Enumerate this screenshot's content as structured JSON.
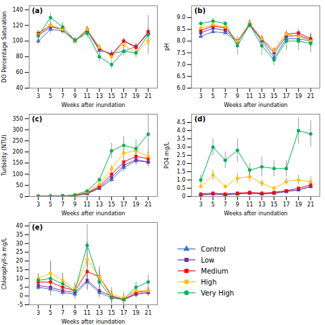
{
  "chart_data": [
    {
      "type": "line",
      "title": "(a)",
      "xlabel": "Weeks after inundation",
      "ylabel": "DO Percentage Saturation",
      "x": [
        3,
        5,
        7,
        9,
        11,
        13,
        15,
        17,
        19,
        21
      ],
      "xlim": [
        1.5,
        22.5
      ],
      "xticks": [
        3,
        5,
        7,
        9,
        11,
        13,
        15,
        17,
        19,
        21
      ],
      "ylim": [
        40,
        145
      ],
      "yticks": [
        40,
        60,
        80,
        100,
        120,
        140
      ],
      "series": [
        {
          "name": "Control",
          "color": "#4472C4",
          "marker": "triangle",
          "values": [
            100,
            115,
            113,
            100,
            113,
            88,
            84,
            87,
            93,
            110
          ],
          "errors": [
            4,
            5,
            4,
            3,
            4,
            5,
            4,
            4,
            4,
            5
          ]
        },
        {
          "name": "Low",
          "color": "#7030A0",
          "marker": "square",
          "values": [
            107,
            118,
            115,
            101,
            114,
            90,
            83,
            100,
            93,
            110
          ],
          "errors": [
            4,
            4,
            4,
            3,
            4,
            4,
            4,
            4,
            4,
            5
          ]
        },
        {
          "name": "Medium",
          "color": "#FF0000",
          "marker": "square",
          "values": [
            110,
            120,
            115,
            100,
            115,
            91,
            82,
            100,
            92,
            112
          ],
          "errors": [
            4,
            4,
            4,
            3,
            4,
            4,
            4,
            4,
            4,
            5
          ]
        },
        {
          "name": "High",
          "color": "#FFC000",
          "marker": "circle",
          "values": [
            108,
            120,
            115,
            100,
            115,
            92,
            80,
            95,
            85,
            100
          ],
          "errors": [
            4,
            4,
            4,
            3,
            4,
            4,
            4,
            4,
            4,
            5
          ]
        },
        {
          "name": "Very High",
          "color": "#00B050",
          "marker": "circle",
          "values": [
            107,
            130,
            118,
            101,
            110,
            80,
            70,
            87,
            85,
            108
          ],
          "errors": [
            4,
            6,
            6,
            4,
            6,
            6,
            5,
            6,
            6,
            25
          ]
        }
      ]
    },
    {
      "type": "line",
      "title": "(b)",
      "xlabel": "Weeks after inundation",
      "ylabel": "pH",
      "x": [
        3,
        5,
        7,
        9,
        11,
        13,
        15,
        17,
        19,
        21
      ],
      "xlim": [
        1.5,
        22.5
      ],
      "xticks": [
        3,
        5,
        7,
        9,
        11,
        13,
        15,
        17,
        19,
        21
      ],
      "ylim": [
        6,
        9.5
      ],
      "yticks": [
        {
          "value": 6,
          "label": "6.0"
        },
        6.5,
        {
          "value": 7,
          "label": "7.0"
        },
        7.5,
        {
          "value": 8,
          "label": "8.0"
        },
        8.5,
        {
          "value": 9,
          "label": "9.0"
        }
      ],
      "series": [
        {
          "name": "Control",
          "color": "#4472C4",
          "marker": "triangle",
          "values": [
            8.2,
            8.4,
            8.35,
            7.95,
            8.7,
            8.0,
            7.3,
            8.1,
            8.1,
            8.0
          ],
          "errors": [
            0.08,
            0.08,
            0.08,
            0.08,
            0.15,
            0.15,
            0.12,
            0.15,
            0.15,
            0.25
          ]
        },
        {
          "name": "Low",
          "color": "#7030A0",
          "marker": "square",
          "values": [
            8.35,
            8.55,
            8.45,
            8.0,
            8.7,
            8.05,
            7.5,
            8.2,
            8.25,
            8.05
          ],
          "errors": [
            0.08,
            0.08,
            0.08,
            0.08,
            0.15,
            0.15,
            0.12,
            0.15,
            0.15,
            0.25
          ]
        },
        {
          "name": "Medium",
          "color": "#FF0000",
          "marker": "square",
          "values": [
            8.45,
            8.65,
            8.55,
            8.0,
            8.75,
            8.1,
            7.6,
            8.3,
            8.35,
            8.1
          ],
          "errors": [
            0.08,
            0.08,
            0.08,
            0.08,
            0.15,
            0.15,
            0.12,
            0.15,
            0.15,
            0.25
          ]
        },
        {
          "name": "High",
          "color": "#FFC000",
          "marker": "circle",
          "values": [
            8.55,
            8.7,
            8.6,
            8.0,
            8.75,
            8.1,
            7.6,
            8.3,
            8.2,
            8.0
          ],
          "errors": [
            0.08,
            0.08,
            0.08,
            0.08,
            0.15,
            0.15,
            0.12,
            0.15,
            0.15,
            0.25
          ]
        },
        {
          "name": "Very High",
          "color": "#00B050",
          "marker": "circle",
          "values": [
            8.75,
            8.85,
            8.75,
            7.8,
            8.7,
            7.8,
            7.2,
            8.0,
            8.0,
            7.9
          ],
          "errors": [
            0.08,
            0.12,
            0.08,
            0.4,
            0.15,
            0.4,
            0.25,
            0.4,
            0.4,
            0.4
          ]
        }
      ]
    },
    {
      "type": "line",
      "title": "(c)",
      "xlabel": "Weeks after inundation",
      "ylabel": "Turbidity (NTU)",
      "x": [
        3,
        5,
        7,
        9,
        11,
        13,
        15,
        17,
        19,
        21
      ],
      "xlim": [
        1.5,
        22.5
      ],
      "xticks": [
        3,
        5,
        7,
        9,
        11,
        13,
        15,
        17,
        19,
        21
      ],
      "ylim": [
        0,
        370
      ],
      "yticks": [
        0,
        50,
        100,
        150,
        200,
        250,
        300,
        350
      ],
      "series": [
        {
          "name": "Control",
          "color": "#4472C4",
          "marker": "triangle",
          "values": [
            1,
            1,
            2,
            4,
            12,
            35,
            75,
            130,
            160,
            155
          ],
          "errors": [
            0.5,
            0.5,
            0.5,
            1,
            3,
            5,
            12,
            20,
            20,
            20
          ]
        },
        {
          "name": "Low",
          "color": "#7030A0",
          "marker": "square",
          "values": [
            1,
            1,
            2,
            4,
            14,
            40,
            85,
            140,
            165,
            155
          ],
          "errors": [
            0.5,
            0.5,
            0.5,
            1,
            3,
            5,
            12,
            20,
            20,
            20
          ]
        },
        {
          "name": "Medium",
          "color": "#FF0000",
          "marker": "square",
          "values": [
            1,
            1,
            2,
            5,
            16,
            45,
            100,
            155,
            180,
            170
          ],
          "errors": [
            0.5,
            0.5,
            0.5,
            1,
            3,
            5,
            12,
            20,
            20,
            20
          ]
        },
        {
          "name": "High",
          "color": "#FFC000",
          "marker": "circle",
          "values": [
            1,
            1,
            2,
            6,
            20,
            55,
            125,
            195,
            205,
            180
          ],
          "errors": [
            0.5,
            0.5,
            0.5,
            1,
            3,
            5,
            15,
            20,
            20,
            20
          ]
        },
        {
          "name": "Very High",
          "color": "#00B050",
          "marker": "circle",
          "values": [
            1,
            1,
            3,
            7,
            25,
            75,
            205,
            230,
            215,
            280
          ],
          "errors": [
            0.5,
            0.5,
            0.5,
            2,
            5,
            10,
            35,
            40,
            40,
            90
          ]
        }
      ]
    },
    {
      "type": "line",
      "title": "(d)",
      "xlabel": "Weeks after inundation",
      "ylabel": "PO4 mg/L",
      "x": [
        3,
        5,
        7,
        9,
        11,
        13,
        15,
        17,
        19,
        21
      ],
      "xlim": [
        1.5,
        22.5
      ],
      "xticks": [
        3,
        5,
        7,
        9,
        11,
        13,
        15,
        17,
        19,
        21
      ],
      "ylim": [
        0,
        5.0
      ],
      "yticks": [
        0,
        0.5,
        {
          "value": 1,
          "label": "1.0"
        },
        1.5,
        {
          "value": 2,
          "label": "2.0"
        },
        2.5,
        {
          "value": 3,
          "label": "3.0"
        },
        3.5,
        {
          "value": 4,
          "label": "4.0"
        },
        4.5
      ],
      "series": [
        {
          "name": "Control",
          "color": "#4472C4",
          "marker": "triangle",
          "values": [
            0.1,
            0.15,
            0.1,
            0.15,
            0.2,
            0.15,
            0.2,
            0.3,
            0.4,
            0.6
          ],
          "errors": [
            0.05,
            0.05,
            0.05,
            0.05,
            0.08,
            0.05,
            0.05,
            0.08,
            0.1,
            0.1
          ]
        },
        {
          "name": "Low",
          "color": "#7030A0",
          "marker": "square",
          "values": [
            0.1,
            0.15,
            0.1,
            0.15,
            0.2,
            0.15,
            0.2,
            0.3,
            0.4,
            0.6
          ],
          "errors": [
            0.05,
            0.05,
            0.05,
            0.05,
            0.08,
            0.05,
            0.05,
            0.08,
            0.1,
            0.1
          ]
        },
        {
          "name": "Medium",
          "color": "#FF0000",
          "marker": "square",
          "values": [
            0.15,
            0.2,
            0.15,
            0.2,
            0.25,
            0.2,
            0.25,
            0.35,
            0.5,
            0.7
          ],
          "errors": [
            0.05,
            0.05,
            0.05,
            0.05,
            0.08,
            0.05,
            0.05,
            0.08,
            0.1,
            0.1
          ]
        },
        {
          "name": "High",
          "color": "#FFC000",
          "marker": "circle",
          "values": [
            0.6,
            1.3,
            0.6,
            1.1,
            1.2,
            0.8,
            0.5,
            0.9,
            1.0,
            0.9
          ],
          "errors": [
            0.1,
            0.3,
            0.1,
            0.3,
            0.3,
            0.2,
            0.1,
            0.2,
            0.3,
            0.3
          ]
        },
        {
          "name": "Very High",
          "color": "#00B050",
          "marker": "circle",
          "values": [
            1.0,
            3.0,
            2.2,
            2.8,
            1.6,
            1.8,
            1.7,
            1.7,
            4.0,
            3.8
          ],
          "errors": [
            0.3,
            0.5,
            0.5,
            0.7,
            0.4,
            0.6,
            0.5,
            0.5,
            0.8,
            0.8
          ]
        }
      ]
    },
    {
      "type": "line",
      "title": "(e)",
      "xlabel": "Weeks after inundation",
      "ylabel": "Chlorophyll-a mg/L",
      "x": [
        3,
        5,
        7,
        9,
        11,
        13,
        15,
        17,
        19,
        21
      ],
      "xlim": [
        1.5,
        22.5
      ],
      "xticks": [
        3,
        5,
        7,
        9,
        11,
        13,
        15,
        17,
        19,
        21
      ],
      "ylim": [
        -5,
        42
      ],
      "yticks": [
        -5,
        0,
        5,
        10,
        15,
        20,
        25,
        30,
        35,
        40
      ],
      "legend": "right",
      "series": [
        {
          "name": "Control",
          "color": "#4472C4",
          "marker": "triangle",
          "values": [
            5,
            4,
            2,
            1,
            8,
            2,
            -1,
            -2,
            1,
            2
          ],
          "errors": [
            2,
            2,
            2,
            2,
            5,
            3,
            3,
            3,
            2,
            2
          ]
        },
        {
          "name": "Low",
          "color": "#7030A0",
          "marker": "square",
          "values": [
            6,
            5,
            3,
            2,
            9,
            3,
            0,
            -2,
            1,
            2
          ],
          "errors": [
            2,
            2,
            2,
            2,
            5,
            3,
            3,
            3,
            2,
            2
          ]
        },
        {
          "name": "Medium",
          "color": "#FF0000",
          "marker": "square",
          "values": [
            8,
            8,
            5,
            3,
            14,
            11,
            0,
            -2,
            2,
            3
          ],
          "errors": [
            2,
            3,
            2,
            2,
            7,
            4,
            3,
            3,
            2,
            2
          ]
        },
        {
          "name": "High",
          "color": "#FFC000",
          "marker": "circle",
          "values": [
            10,
            13,
            9,
            4,
            21,
            11,
            1,
            -1,
            3,
            3
          ],
          "errors": [
            3,
            7,
            4,
            3,
            10,
            6,
            4,
            3,
            2,
            2
          ]
        },
        {
          "name": "Very High",
          "color": "#00B050",
          "marker": "circle",
          "values": [
            9,
            10,
            7,
            3,
            29,
            8,
            -1,
            -2,
            5,
            8
          ],
          "errors": [
            3,
            10,
            6,
            5,
            12,
            6,
            4,
            3,
            3,
            4
          ]
        }
      ]
    }
  ]
}
